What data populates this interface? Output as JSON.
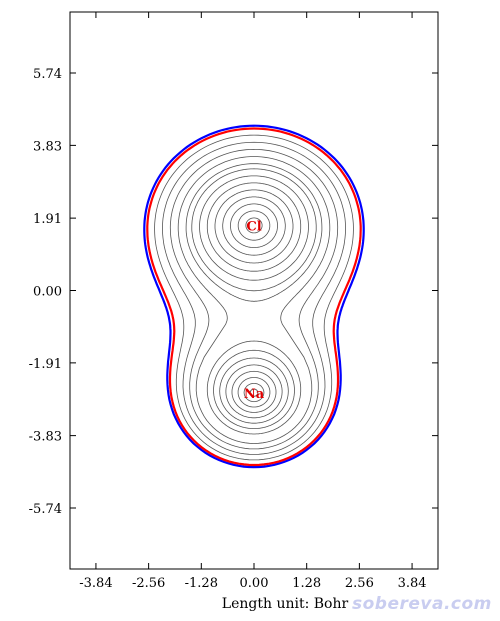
{
  "chart_data": {
    "type": "contour",
    "xlabel": "Length unit: Bohr",
    "x_ticks": [
      "-3.84",
      "-2.56",
      "-1.28",
      "0.00",
      "1.28",
      "2.56",
      "3.84"
    ],
    "y_ticks": [
      "5.74",
      "3.83",
      "1.91",
      "0.00",
      "-1.91",
      "-3.83",
      "-5.74"
    ],
    "xlim": [
      -4.47,
      4.47
    ],
    "ylim": [
      -7.35,
      7.35
    ],
    "atoms": [
      {
        "label": "Cl",
        "x": 0.0,
        "y": 1.72
      },
      {
        "label": "Na",
        "x": 0.0,
        "y": -2.7
      }
    ],
    "boundary_curves": [
      {
        "color": "#0000ff",
        "description_value": "outer isosurface contour"
      },
      {
        "color": "#ff0000",
        "description_value": "inner isosurface contour"
      }
    ],
    "colors": {
      "contour": "#555555",
      "outer": "#0000ff",
      "inner": "#ff0000",
      "atom_label": "#e00000"
    }
  },
  "watermark": "sobereva.com"
}
